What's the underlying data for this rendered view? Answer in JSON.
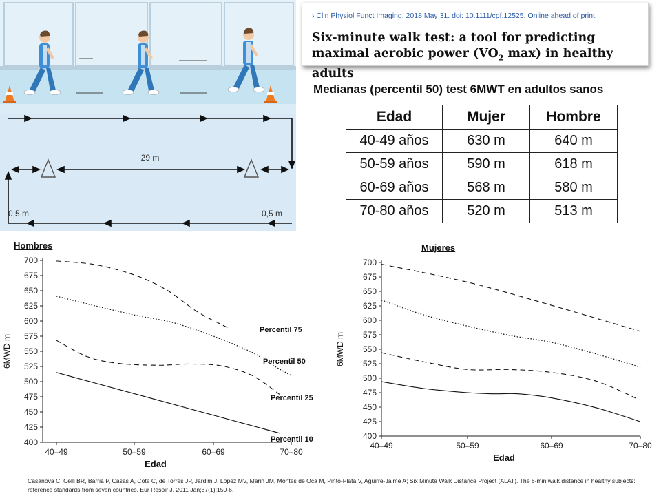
{
  "citation": {
    "reference": "Clin Physiol Funct Imaging. 2018 May 31. doi: 10.1111/cpf.12525. Online ahead of print.",
    "title_part1": "Six-minute walk test: a tool for predicting maximal aerobic power (VO",
    "title_sub": "2",
    "title_part2": " max) in healthy adults"
  },
  "illustration": {
    "distance_label": "29 m",
    "margin_left_label": "0,5 m",
    "margin_right_label": "0,5 m"
  },
  "table": {
    "title": "Medianas (percentil 50) test 6MWT en adultos sanos",
    "headers": [
      "Edad",
      "Mujer",
      "Hombre"
    ],
    "rows": [
      [
        "40-49 años",
        "630 m",
        "640 m"
      ],
      [
        "50-59 años",
        "590 m",
        "618 m"
      ],
      [
        "60-69 años",
        "568 m",
        "580 m"
      ],
      [
        "70-80 años",
        "520 m",
        "513 m"
      ]
    ]
  },
  "chart_data": [
    {
      "type": "line",
      "heading": "Hombres",
      "xlabel": "Edad",
      "ylabel": "6MWD m",
      "categories": [
        "40–49",
        "50–59",
        "60–69",
        "70–80"
      ],
      "ylim": [
        400,
        700
      ],
      "yticks": [
        400,
        425,
        450,
        475,
        500,
        525,
        550,
        575,
        600,
        625,
        650,
        675,
        700
      ],
      "grid": false,
      "series": [
        {
          "name": "Percentil 75",
          "style": "dashed",
          "points": [
            [
              0,
              699
            ],
            [
              0.5,
              693
            ],
            [
              1,
              676
            ],
            [
              1.4,
              652
            ],
            [
              1.8,
              615
            ],
            [
              2.2,
              588
            ]
          ]
        },
        {
          "name": "Percentil 50",
          "style": "dotted",
          "points": [
            [
              0,
              641
            ],
            [
              0.5,
              625
            ],
            [
              1,
              610
            ],
            [
              1.5,
              597
            ],
            [
              2,
              575
            ],
            [
              2.5,
              548
            ],
            [
              2.75,
              528
            ],
            [
              3,
              510
            ]
          ]
        },
        {
          "name": "Percentil 25",
          "style": "dashed",
          "points": [
            [
              0,
              568
            ],
            [
              0.4,
              541
            ],
            [
              0.8,
              530
            ],
            [
              1.3,
              527
            ],
            [
              1.7,
              529
            ],
            [
              2.1,
              526
            ],
            [
              2.5,
              510
            ],
            [
              2.85,
              479
            ]
          ]
        },
        {
          "name": "Percentil 10",
          "style": "solid",
          "points": [
            [
              0,
              515
            ],
            [
              2.85,
              415
            ]
          ]
        }
      ]
    },
    {
      "type": "line",
      "heading": "Mujeres",
      "xlabel": "Edad",
      "ylabel": "6MWD m",
      "categories": [
        "40–49",
        "50–59",
        "60–69",
        "70–80"
      ],
      "ylim": [
        400,
        700
      ],
      "yticks": [
        400,
        425,
        450,
        475,
        500,
        525,
        550,
        575,
        600,
        625,
        650,
        675,
        700
      ],
      "grid": false,
      "series": [
        {
          "style": "dashed",
          "points": [
            [
              0,
              697
            ],
            [
              1,
              666
            ],
            [
              2,
              626
            ],
            [
              3,
              581
            ]
          ]
        },
        {
          "style": "dotted",
          "points": [
            [
              0,
              635
            ],
            [
              0.5,
              609
            ],
            [
              1,
              590
            ],
            [
              1.5,
              574
            ],
            [
              2,
              562
            ],
            [
              2.5,
              542
            ],
            [
              3,
              519
            ]
          ]
        },
        {
          "style": "dashed",
          "points": [
            [
              0,
              544
            ],
            [
              0.5,
              528
            ],
            [
              1,
              515
            ],
            [
              1.5,
              515
            ],
            [
              2,
              510
            ],
            [
              2.5,
              495
            ],
            [
              3,
              462
            ]
          ]
        },
        {
          "style": "solid",
          "points": [
            [
              0,
              494
            ],
            [
              0.5,
              482
            ],
            [
              1,
              475
            ],
            [
              1.3,
              473
            ],
            [
              1.6,
              473
            ],
            [
              2,
              466
            ],
            [
              2.5,
              449
            ],
            [
              3,
              425
            ]
          ]
        }
      ]
    }
  ],
  "footer": "Casanova C, Celli BR, Barria P, Casas A, Cote C, de Torres JP, Jardim J, Lopez MV, Marin JM, Montes de Oca M, Pinto-Plata V, Aguirre-Jaime A; Six Minute Walk Distance Project (ALAT). The 6-min walk distance in healthy subjects: reference standards from seven countries. Eur Respir J. 2011 Jan;37(1):150-6."
}
